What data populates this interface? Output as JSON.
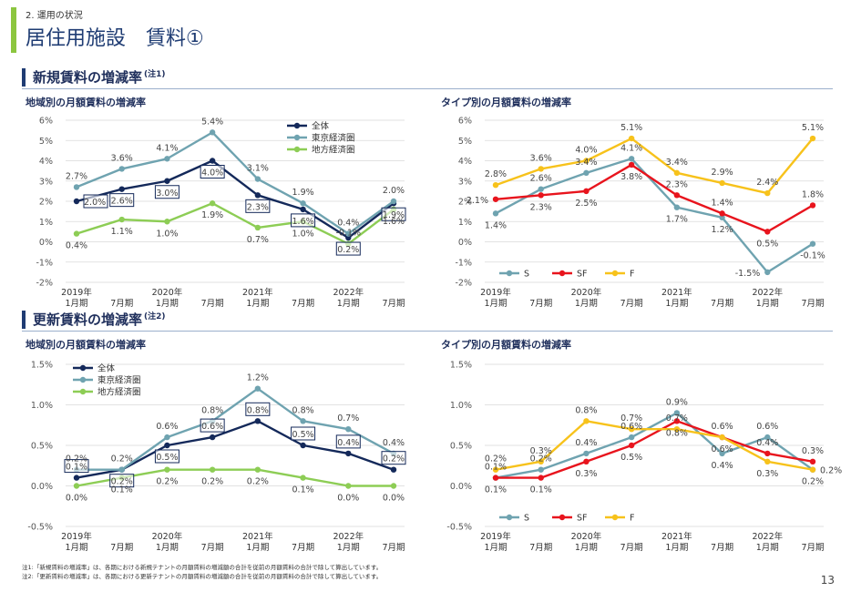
{
  "header": {
    "breadcrumb": "2. 運用の状況",
    "title": "居住用施設　賃料①"
  },
  "sections": [
    {
      "label": "新規賃料の増減率",
      "note": "(注1)"
    },
    {
      "label": "更新賃料の増減率",
      "note": "(注2)"
    }
  ],
  "footnotes": [
    "注1:「新規賃料の増減率」は、各期における新規テナントの月額賃料の増減額の合計を従前の月額賃料の合計で除して算出しています。",
    "注2:「更新賃料の増減率」は、各期における更新テナントの月額賃料の増減額の合計を従前の月額賃料の合計で除して算出しています。"
  ],
  "page_number": "13",
  "colors": {
    "navy": "#14295a",
    "teal": "#6fa3b0",
    "green": "#8dcd55",
    "red": "#e8141d",
    "yellow": "#f7c21b"
  },
  "chart_data": [
    {
      "id": "c1",
      "type": "line",
      "title": "地域別の月額賃料の増減率",
      "categories": [
        [
          "2019年",
          "1月期"
        ],
        [
          "",
          "7月期"
        ],
        [
          "2020年",
          "1月期"
        ],
        [
          "",
          "7月期"
        ],
        [
          "2021年",
          "1月期"
        ],
        [
          "",
          "7月期"
        ],
        [
          "2022年",
          "1月期"
        ],
        [
          "",
          "7月期"
        ]
      ],
      "y_ticks": [
        "-2%",
        "-1%",
        "0%",
        "1%",
        "2%",
        "3%",
        "4%",
        "5%",
        "6%"
      ],
      "ylim": [
        -2,
        6
      ],
      "legend": "top-right",
      "legend_layout": "vertical",
      "series": [
        {
          "name": "全体",
          "color": "#14295a",
          "boxed": true,
          "values": [
            2.0,
            2.6,
            3.0,
            4.0,
            2.3,
            1.6,
            0.2,
            1.9
          ],
          "labels": [
            "2.0%",
            "2.6%",
            "3.0%",
            "4.0%",
            "2.3%",
            "1.6%",
            "0.2%",
            "1.9%"
          ]
        },
        {
          "name": "東京経済圏",
          "color": "#6fa3b0",
          "values": [
            2.7,
            3.6,
            4.1,
            5.4,
            3.1,
            1.9,
            0.4,
            2.0
          ],
          "labels": [
            "2.7%",
            "3.6%",
            "4.1%",
            "5.4%",
            "3.1%",
            "1.9%",
            "0.4%",
            "2.0%"
          ]
        },
        {
          "name": "地方経済圏",
          "color": "#8dcd55",
          "values": [
            0.4,
            1.1,
            1.0,
            1.9,
            0.7,
            1.0,
            -0.1,
            1.6
          ],
          "labels": [
            "0.4%",
            "1.1%",
            "1.0%",
            "1.9%",
            "0.7%",
            "1.0%",
            "-0.1%",
            "1.6%"
          ]
        }
      ]
    },
    {
      "id": "c2",
      "type": "line",
      "title": "タイプ別の月額賃料の増減率",
      "categories": [
        [
          "2019年",
          "1月期"
        ],
        [
          "",
          "7月期"
        ],
        [
          "2020年",
          "1月期"
        ],
        [
          "",
          "7月期"
        ],
        [
          "2021年",
          "1月期"
        ],
        [
          "",
          "7月期"
        ],
        [
          "2022年",
          "1月期"
        ],
        [
          "",
          "7月期"
        ]
      ],
      "y_ticks": [
        "-2%",
        "-1%",
        "0%",
        "1%",
        "2%",
        "3%",
        "4%",
        "5%",
        "6%"
      ],
      "ylim": [
        -2,
        6
      ],
      "legend": "bottom-left",
      "legend_layout": "horizontal",
      "series": [
        {
          "name": "S",
          "color": "#6fa3b0",
          "values": [
            1.4,
            2.6,
            3.4,
            4.1,
            1.7,
            1.2,
            -1.5,
            -0.1
          ],
          "labels": [
            "1.4%",
            "2.6%",
            "3.4%",
            "4.1%",
            "1.7%",
            "1.2%",
            "-1.5%",
            "-0.1%"
          ]
        },
        {
          "name": "SF",
          "color": "#e8141d",
          "values": [
            2.1,
            2.3,
            2.5,
            3.8,
            2.3,
            1.4,
            0.5,
            1.8
          ],
          "labels": [
            "2.1%",
            "2.3%",
            "2.5%",
            "3.8%",
            "2.3%",
            "1.4%",
            "0.5%",
            "1.8%"
          ]
        },
        {
          "name": "F",
          "color": "#f7c21b",
          "values": [
            2.8,
            3.6,
            4.0,
            5.1,
            3.4,
            2.9,
            2.4,
            5.1
          ],
          "labels": [
            "2.8%",
            "3.6%",
            "4.0%",
            "5.1%",
            "3.4%",
            "2.9%",
            "2.4%",
            "5.1%"
          ]
        }
      ]
    },
    {
      "id": "c3",
      "type": "line",
      "title": "地域別の月額賃料の増減率",
      "categories": [
        [
          "2019年",
          "1月期"
        ],
        [
          "",
          "7月期"
        ],
        [
          "2020年",
          "1月期"
        ],
        [
          "",
          "7月期"
        ],
        [
          "2021年",
          "1月期"
        ],
        [
          "",
          "7月期"
        ],
        [
          "2022年",
          "1月期"
        ],
        [
          "",
          "7月期"
        ]
      ],
      "y_ticks": [
        "-0.5%",
        "0.0%",
        "0.5%",
        "1.0%",
        "1.5%"
      ],
      "ylim": [
        -0.5,
        1.5
      ],
      "legend": "top-left",
      "legend_layout": "vertical",
      "series": [
        {
          "name": "全体",
          "color": "#14295a",
          "boxed": true,
          "values": [
            0.1,
            0.2,
            0.5,
            0.6,
            0.8,
            0.5,
            0.4,
            0.2
          ],
          "labels": [
            "0.1%",
            "0.2%",
            "0.5%",
            "0.6%",
            "0.8%",
            "0.5%",
            "0.4%",
            "0.2%"
          ]
        },
        {
          "name": "東京経済圏",
          "color": "#6fa3b0",
          "values": [
            0.2,
            0.2,
            0.6,
            0.8,
            1.2,
            0.8,
            0.7,
            0.4
          ],
          "labels": [
            "0.2%",
            "0.2%",
            "0.6%",
            "0.8%",
            "1.2%",
            "0.8%",
            "0.7%",
            "0.4%"
          ]
        },
        {
          "name": "地方経済圏",
          "color": "#8dcd55",
          "values": [
            0.0,
            0.1,
            0.2,
            0.2,
            0.2,
            0.1,
            0.0,
            0.0
          ],
          "labels": [
            "0.0%",
            "0.1%",
            "0.2%",
            "0.2%",
            "0.2%",
            "0.1%",
            "0.0%",
            "0.0%"
          ]
        }
      ]
    },
    {
      "id": "c4",
      "type": "line",
      "title": "タイプ別の月額賃料の増減率",
      "categories": [
        [
          "2019年",
          "1月期"
        ],
        [
          "",
          "7月期"
        ],
        [
          "2020年",
          "1月期"
        ],
        [
          "",
          "7月期"
        ],
        [
          "2021年",
          "1月期"
        ],
        [
          "",
          "7月期"
        ],
        [
          "2022年",
          "1月期"
        ],
        [
          "",
          "7月期"
        ]
      ],
      "y_ticks": [
        "-0.5%",
        "0.0%",
        "0.5%",
        "1.0%",
        "1.5%"
      ],
      "ylim": [
        -0.5,
        1.5
      ],
      "legend": "bottom-left",
      "legend_layout": "horizontal",
      "series": [
        {
          "name": "S",
          "color": "#6fa3b0",
          "values": [
            0.1,
            0.2,
            0.4,
            0.6,
            0.9,
            0.4,
            0.6,
            0.2
          ],
          "labels": [
            "0.1%",
            "0.2%",
            "0.4%",
            "0.6%",
            "0.9%",
            "0.4%",
            "0.6%",
            "0.2%"
          ]
        },
        {
          "name": "SF",
          "color": "#e8141d",
          "values": [
            0.1,
            0.1,
            0.3,
            0.5,
            0.8,
            0.6,
            0.4,
            0.3
          ],
          "labels": [
            "0.1%",
            "0.1%",
            "0.3%",
            "0.5%",
            "0.8%",
            "0.6%",
            "0.4%",
            "0.3%"
          ]
        },
        {
          "name": "F",
          "color": "#f7c21b",
          "values": [
            0.2,
            0.3,
            0.8,
            0.7,
            0.7,
            0.6,
            0.3,
            0.2
          ],
          "labels": [
            "0.2%",
            "0.3%",
            "0.8%",
            "0.7%",
            "0.7%",
            "0.6%",
            "0.3%",
            "0.2%"
          ]
        }
      ]
    }
  ]
}
